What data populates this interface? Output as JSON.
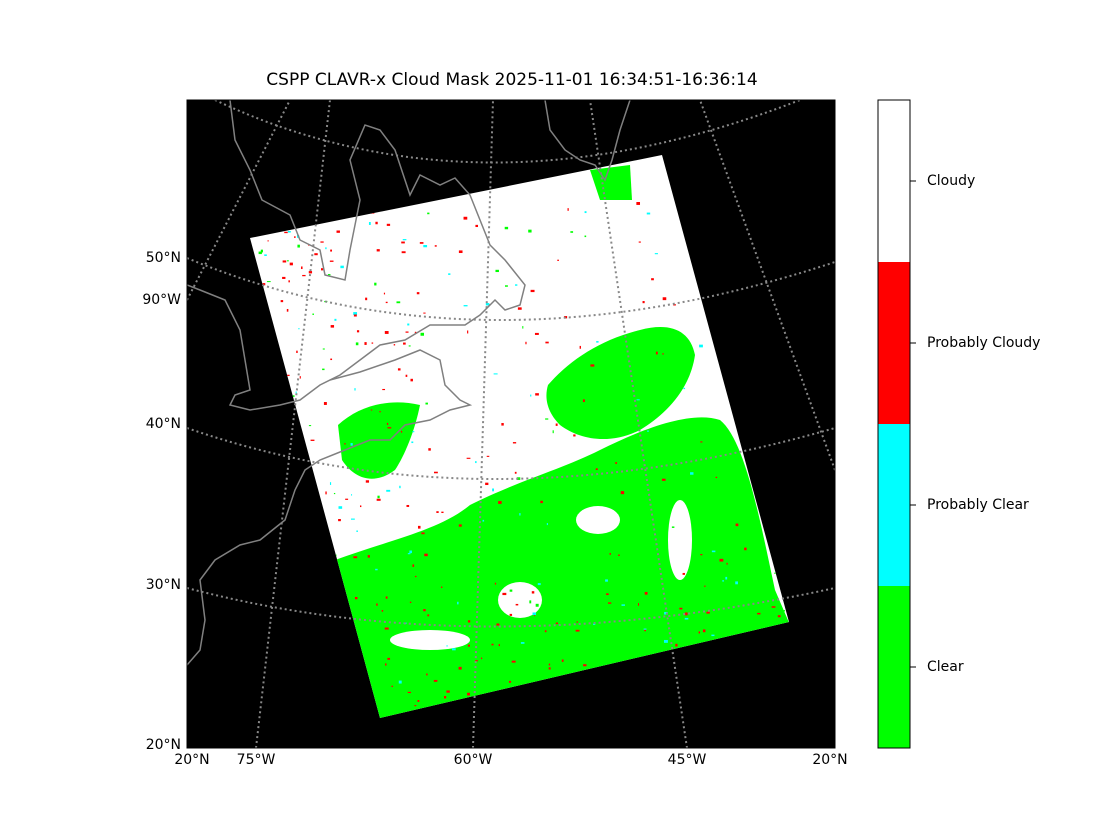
{
  "title": "CSPP CLAVR-x Cloud Mask 2025-11-01 16:34:51-16:36:14",
  "left_labels": [
    "50°N",
    "90°W",
    "40°N",
    "30°N",
    "20°N"
  ],
  "bottom_labels": [
    "20°N",
    "75°W",
    "60°W",
    "45°W",
    "20°N"
  ],
  "colorbar": [
    {
      "label": "Clear",
      "color": "#00ff00"
    },
    {
      "label": "Probably Clear",
      "color": "#00ffff"
    },
    {
      "label": "Probably Cloudy",
      "color": "#ff0000"
    },
    {
      "label": "Cloudy",
      "color": "#ffffff"
    }
  ]
}
